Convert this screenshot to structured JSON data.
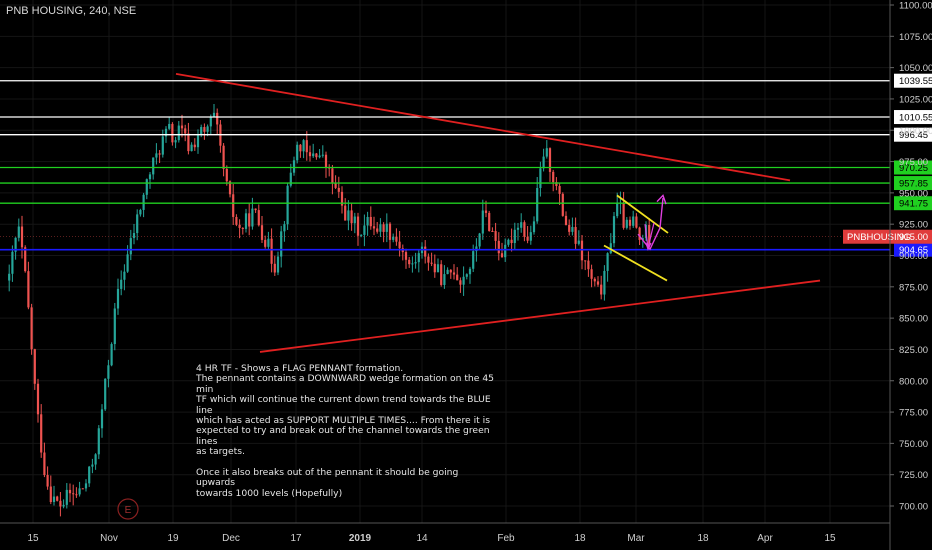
{
  "title": "PNB HOUSING, 240, NSE",
  "symbol_label": "PNBHOUSING",
  "last_price": "915.00",
  "note_lines": [
    "4 HR TF - Shows a FLAG PENNANT formation.",
    "The pennant contains a DOWNWARD wedge formation on the 45 min",
    "TF which will continue the current down trend towards the BLUE line",
    "which has acted as SUPPORT MULTIPLE TIMES.... From there it is",
    "expected to try and break out of the channel towards the green lines",
    "as targets.",
    "",
    "Once it also breaks out of the pennant it should be going upwards",
    "towards 1000 levels (Hopefully)"
  ],
  "event_marker": "E",
  "colors": {
    "background": "#000000",
    "up": "#26a69a",
    "down": "#ef5350",
    "trendline": "#e02020",
    "support": "#1a1aff",
    "target": "#20d020",
    "resistance": "#ffffff",
    "wedge": "#f0e020",
    "arrows": "#e040e0"
  },
  "chart_data": {
    "type": "candlestick",
    "title": "PNB HOUSING, 240, NSE",
    "x_ticks": [
      "15",
      "Nov",
      "19",
      "Dec",
      "17",
      "2019",
      "14",
      "Feb",
      "18",
      "Mar",
      "18",
      "Apr",
      "15"
    ],
    "x_tick_bold": [
      false,
      false,
      false,
      false,
      false,
      true,
      false,
      false,
      false,
      false,
      false,
      false,
      false
    ],
    "y_ticks": [
      "700.00",
      "725.00",
      "750.00",
      "775.00",
      "800.00",
      "825.00",
      "850.00",
      "875.00",
      "900.00",
      "925.00",
      "950.00",
      "975.00",
      "1000.00",
      "1025.00",
      "1050.00",
      "1075.00",
      "1100.00"
    ],
    "ylim": [
      695,
      1100
    ],
    "horizontal_levels": [
      {
        "value": 1039.55,
        "label": "1039.55",
        "kind": "resistance"
      },
      {
        "value": 1010.55,
        "label": "1010.55",
        "kind": "resistance"
      },
      {
        "value": 996.45,
        "label": "996.45",
        "kind": "resistance"
      },
      {
        "value": 970.25,
        "label": "970.25",
        "kind": "target"
      },
      {
        "value": 957.85,
        "label": "957.85",
        "kind": "target"
      },
      {
        "value": 941.75,
        "label": "941.75",
        "kind": "target"
      },
      {
        "value": 904.65,
        "label": "904.65",
        "kind": "support"
      }
    ],
    "last_price": 915.0,
    "candle_path": [
      [
        0,
        880
      ],
      [
        5,
        910
      ],
      [
        10,
        920
      ],
      [
        15,
        890
      ],
      [
        20,
        850
      ],
      [
        25,
        800
      ],
      [
        30,
        760
      ],
      [
        35,
        730
      ],
      [
        40,
        712
      ],
      [
        45,
        705
      ],
      [
        50,
        700
      ],
      [
        55,
        703
      ],
      [
        60,
        710
      ],
      [
        65,
        708
      ],
      [
        70,
        712
      ],
      [
        75,
        715
      ],
      [
        80,
        725
      ],
      [
        85,
        740
      ],
      [
        90,
        760
      ],
      [
        95,
        790
      ],
      [
        100,
        820
      ],
      [
        105,
        850
      ],
      [
        110,
        875
      ],
      [
        115,
        890
      ],
      [
        120,
        905
      ],
      [
        125,
        920
      ],
      [
        130,
        935
      ],
      [
        135,
        950
      ],
      [
        140,
        965
      ],
      [
        145,
        975
      ],
      [
        150,
        985
      ],
      [
        155,
        995
      ],
      [
        160,
        1000
      ],
      [
        165,
        990
      ],
      [
        170,
        1000
      ],
      [
        175,
        995
      ],
      [
        180,
        985
      ],
      [
        185,
        990
      ],
      [
        190,
        1000
      ],
      [
        195,
        995
      ],
      [
        200,
        1005
      ],
      [
        205,
        1010
      ],
      [
        210,
        990
      ],
      [
        215,
        965
      ],
      [
        220,
        945
      ],
      [
        225,
        930
      ],
      [
        230,
        920
      ],
      [
        235,
        925
      ],
      [
        240,
        930
      ],
      [
        245,
        935
      ],
      [
        250,
        925
      ],
      [
        255,
        915
      ],
      [
        260,
        905
      ],
      [
        265,
        890
      ],
      [
        270,
        910
      ],
      [
        275,
        930
      ],
      [
        280,
        960
      ],
      [
        285,
        980
      ],
      [
        290,
        990
      ],
      [
        295,
        985
      ],
      [
        300,
        975
      ],
      [
        305,
        985
      ],
      [
        310,
        980
      ],
      [
        315,
        975
      ],
      [
        320,
        965
      ],
      [
        325,
        955
      ],
      [
        330,
        945
      ],
      [
        335,
        935
      ],
      [
        340,
        930
      ],
      [
        345,
        925
      ],
      [
        350,
        920
      ],
      [
        355,
        922
      ],
      [
        360,
        928
      ],
      [
        365,
        925
      ],
      [
        370,
        920
      ],
      [
        375,
        925
      ],
      [
        380,
        920
      ],
      [
        385,
        915
      ],
      [
        390,
        910
      ],
      [
        395,
        900
      ],
      [
        400,
        890
      ],
      [
        405,
        895
      ],
      [
        410,
        900
      ],
      [
        415,
        905
      ],
      [
        420,
        895
      ],
      [
        425,
        890
      ],
      [
        430,
        885
      ],
      [
        435,
        880
      ],
      [
        440,
        885
      ],
      [
        445,
        890
      ],
      [
        450,
        880
      ],
      [
        455,
        885
      ],
      [
        460,
        890
      ],
      [
        465,
        900
      ],
      [
        470,
        920
      ],
      [
        475,
        935
      ],
      [
        480,
        925
      ],
      [
        485,
        915
      ],
      [
        490,
        905
      ],
      [
        495,
        900
      ],
      [
        500,
        910
      ],
      [
        505,
        920
      ],
      [
        510,
        930
      ],
      [
        515,
        920
      ],
      [
        520,
        910
      ],
      [
        525,
        930
      ],
      [
        530,
        960
      ],
      [
        535,
        985
      ],
      [
        540,
        975
      ],
      [
        545,
        960
      ],
      [
        550,
        945
      ],
      [
        555,
        930
      ],
      [
        560,
        920
      ],
      [
        565,
        915
      ],
      [
        570,
        905
      ],
      [
        575,
        895
      ],
      [
        580,
        885
      ],
      [
        585,
        875
      ],
      [
        590,
        870
      ],
      [
        595,
        880
      ],
      [
        600,
        905
      ],
      [
        605,
        935
      ],
      [
        610,
        940
      ],
      [
        615,
        925
      ],
      [
        620,
        920
      ],
      [
        625,
        930
      ],
      [
        630,
        910
      ],
      [
        635,
        920
      ],
      [
        640,
        915
      ],
      [
        645,
        915
      ]
    ],
    "trendlines": [
      {
        "name": "",
        "kind": "trendline",
        "from": [
          176,
          1045
        ],
        "to": [
          790,
          960
        ]
      },
      {
        "name": "",
        "kind": "trendline",
        "from": [
          260,
          823
        ],
        "to": [
          820,
          880
        ]
      },
      {
        "name": "",
        "kind": "wedge",
        "from": [
          617,
          948
        ],
        "to": [
          668,
          918
        ]
      },
      {
        "name": "",
        "kind": "wedge",
        "from": [
          604,
          908
        ],
        "to": [
          667,
          880
        ]
      }
    ]
  }
}
